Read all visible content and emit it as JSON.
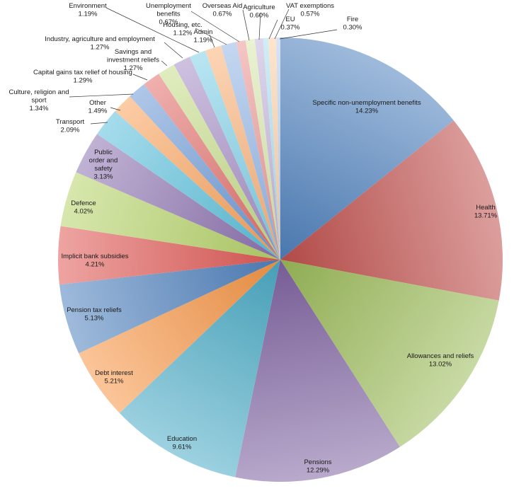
{
  "chart_data": {
    "type": "pie",
    "title": "",
    "start_angle_deg": 0,
    "direction": "clockwise",
    "legend": "none",
    "slices": [
      {
        "label": "Specific non-unemployment benefits",
        "value": 14.23,
        "value_label": "14.23%",
        "color": "#4f81bd"
      },
      {
        "label": "Health",
        "value": 13.71,
        "value_label": "13.71%",
        "color": "#c0504d"
      },
      {
        "label": "Allowances and reliefs",
        "value": 13.02,
        "value_label": "13.02%",
        "color": "#9bbb59"
      },
      {
        "label": "Pensions",
        "value": 12.29,
        "value_label": "12.29%",
        "color": "#8064a2"
      },
      {
        "label": "Education",
        "value": 9.61,
        "value_label": "9.61%",
        "color": "#4bacc6"
      },
      {
        "label": "Debt interest",
        "value": 5.21,
        "value_label": "5.21%",
        "color": "#f79646"
      },
      {
        "label": "Pension tax reliefs",
        "value": 5.13,
        "value_label": "5.13%",
        "color": "#4f81bd"
      },
      {
        "label": "Implicit bank subsidies",
        "value": 4.21,
        "value_label": "4.21%",
        "color": "#e05a56"
      },
      {
        "label": "Defence",
        "value": 4.02,
        "value_label": "4.02%",
        "color": "#b7d36a"
      },
      {
        "label": "Public order and safety",
        "value": 3.13,
        "value_label": "3.13%",
        "color": "#8d73b0"
      },
      {
        "label": "Transport",
        "value": 2.09,
        "value_label": "2.09%",
        "color": "#5bc0dc"
      },
      {
        "label": "Other",
        "value": 1.49,
        "value_label": "1.49%",
        "color": "#f9a35c"
      },
      {
        "label": "Culture, religion and sport",
        "value": 1.34,
        "value_label": "1.34%",
        "color": "#6d9ad6"
      },
      {
        "label": "Capital gains tax relief of housing",
        "value": 1.29,
        "value_label": "1.29%",
        "color": "#e26f6b"
      },
      {
        "label": "Savings and investment reliefs",
        "value": 1.27,
        "value_label": "1.27%",
        "color": "#c6dc8a"
      },
      {
        "label": "Industry, agriculture and employment",
        "value": 1.27,
        "value_label": "1.27%",
        "color": "#a58fc6"
      },
      {
        "label": "Environment",
        "value": 1.19,
        "value_label": "1.19%",
        "color": "#7fd0e8"
      },
      {
        "label": "Admin",
        "value": 1.19,
        "value_label": "1.19%",
        "color": "#fab27a"
      },
      {
        "label": "Housing, etc.",
        "value": 1.12,
        "value_label": "1.12%",
        "color": "#93b6e6"
      },
      {
        "label": "Unemployment benefits",
        "value": 0.67,
        "value_label": "0.67%",
        "color": "#eb9896"
      },
      {
        "label": "Overseas Aid",
        "value": 0.67,
        "value_label": "0.67%",
        "color": "#d8e8ae"
      },
      {
        "label": "Agriculture",
        "value": 0.6,
        "value_label": "0.60%",
        "color": "#c3b4dc"
      },
      {
        "label": "EU",
        "value": 0.37,
        "value_label": "0.37%",
        "color": "#a9e0f0"
      },
      {
        "label": "VAT exemptions",
        "value": 0.57,
        "value_label": "0.57%",
        "color": "#fcd0a8"
      },
      {
        "label": "Fire",
        "value": 0.3,
        "value_label": "0.30%",
        "color": "#b6cdee"
      }
    ]
  }
}
